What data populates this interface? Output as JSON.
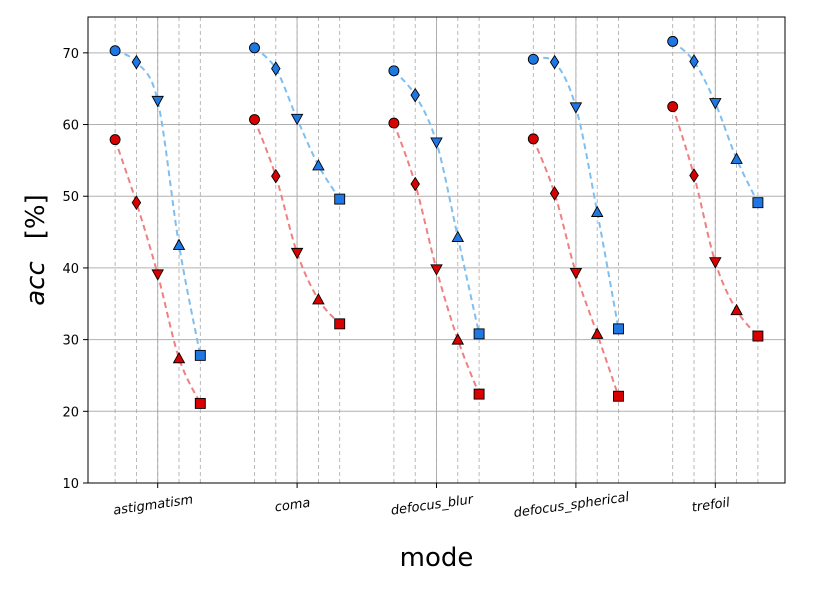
{
  "chart_data": {
    "type": "line",
    "title": "",
    "xlabel": "mode",
    "ylabel_var": "acc",
    "ylabel_unit": "[%]",
    "ylim": [
      10,
      75
    ],
    "yticks": [
      10,
      20,
      30,
      40,
      50,
      60,
      70
    ],
    "grid": true,
    "categories": [
      "astigmatism",
      "coma",
      "defocus_blur",
      "defocus_spherical",
      "trefoil"
    ],
    "markers": [
      "circle",
      "diamond",
      "triangle-down",
      "triangle-up",
      "square"
    ],
    "series": [
      {
        "color": "#1f77e4",
        "line_color": "#7fbff0",
        "values": [
          [
            70.3,
            68.7,
            63.3,
            43.2,
            27.8
          ],
          [
            70.7,
            67.8,
            60.8,
            54.3,
            49.6
          ],
          [
            67.5,
            64.1,
            57.5,
            44.3,
            30.8
          ],
          [
            69.1,
            68.7,
            62.4,
            47.8,
            31.5
          ],
          [
            71.6,
            68.8,
            63.0,
            55.2,
            49.1
          ]
        ]
      },
      {
        "color": "#d90000",
        "line_color": "#f08080",
        "values": [
          [
            57.9,
            49.1,
            39.1,
            27.4,
            21.1
          ],
          [
            60.7,
            52.8,
            42.1,
            35.6,
            32.2
          ],
          [
            60.2,
            51.7,
            39.8,
            30.0,
            22.4
          ],
          [
            58.0,
            50.4,
            39.3,
            30.8,
            22.1
          ],
          [
            62.5,
            52.9,
            40.8,
            34.1,
            30.5
          ]
        ]
      }
    ]
  }
}
